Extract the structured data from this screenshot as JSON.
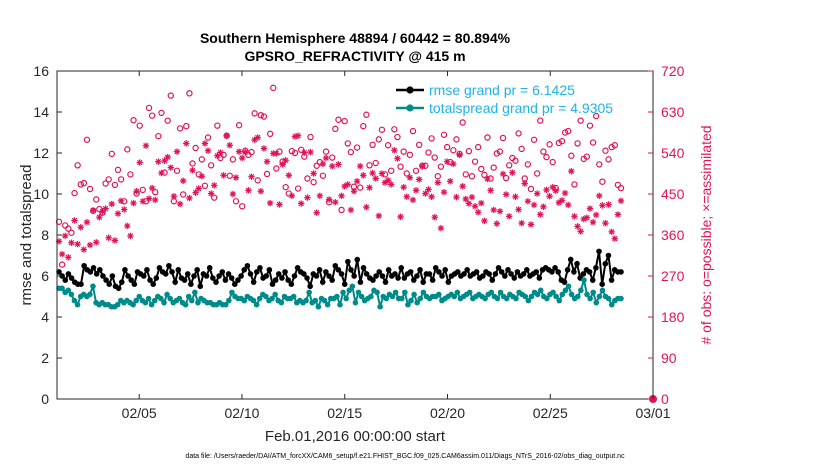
{
  "chart_data": {
    "type": "line",
    "title": "Southern Hemisphere 48894 / 60442 = 80.894%",
    "subtitle": "GPSRO_REFRACTIVITY @ 415 m",
    "xlabel": "Feb.01,2016 00:00:00 start",
    "ylabel": "rmse and totalspread",
    "ylabel_right": "# of obs: o=possible; ×=assimilated",
    "footer": "data file: /Users/raeder/DAI/ATM_forcXX/CAM6_setup/f.e21.FHIST_BGC.f09_025.CAM6assim.011/Diags_NTrS_2016-02/obs_diag_output.nc",
    "xlim": [
      0,
      29
    ],
    "ylim": [
      0,
      16
    ],
    "ylim_right": [
      0,
      720
    ],
    "x_ticks": [
      {
        "value": 4,
        "label": "02/05"
      },
      {
        "value": 9,
        "label": "02/10"
      },
      {
        "value": 14,
        "label": "02/15"
      },
      {
        "value": 19,
        "label": "02/20"
      },
      {
        "value": 24,
        "label": "02/25"
      },
      {
        "value": 29,
        "label": "03/01"
      }
    ],
    "y_ticks": [
      "0",
      "2",
      "4",
      "6",
      "8",
      "10",
      "12",
      "14",
      "16"
    ],
    "y_ticks_right": [
      "0",
      "90",
      "180",
      "270",
      "360",
      "450",
      "540",
      "630",
      "720"
    ],
    "legend_position": "top-right",
    "colors": {
      "rmse": "#000000",
      "spread": "#008b8b",
      "obs": "#e0135a",
      "legend_text": "#1fb3e8"
    },
    "series": [
      {
        "name": "rmse grand pr = 6.1425",
        "values": [
          6.2,
          6.0,
          5.8,
          6.1,
          5.9,
          5.7,
          5.6,
          5.6,
          6.5,
          6.3,
          6.2,
          6.4,
          6.1,
          6.3,
          6.0,
          5.8,
          5.6,
          6.0,
          5.5,
          5.4,
          5.7,
          6.3,
          6.0,
          5.8,
          5.6,
          6.2,
          6.1,
          6.0,
          6.3,
          5.8,
          5.6,
          5.9,
          6.4,
          6.2,
          6.1,
          6.5,
          6.2,
          5.7,
          6.3,
          5.9,
          5.8,
          6.1,
          5.6,
          6.0,
          6.3,
          5.5,
          6.1,
          6.0,
          6.4,
          5.9,
          5.7,
          6.0,
          6.2,
          5.8,
          6.1,
          5.9,
          5.6,
          5.8,
          6.0,
          6.3,
          6.5,
          6.1,
          5.7,
          6.2,
          6.4,
          5.9,
          6.0,
          6.3,
          5.6,
          5.8,
          6.1,
          5.9,
          6.2,
          5.8,
          5.6,
          6.0,
          6.4,
          6.2,
          6.1,
          5.9,
          5.5,
          6.1,
          6.0,
          6.3,
          5.7,
          6.2,
          6.0,
          5.8,
          6.5,
          6.3,
          6.1,
          5.6,
          6.7,
          6.3,
          6.0,
          6.8,
          5.7,
          6.4,
          6.1,
          5.9,
          5.8,
          6.0,
          6.2,
          6.0,
          5.7,
          6.3,
          6.0,
          6.1,
          5.9,
          6.4,
          5.9,
          6.1,
          6.2,
          5.8,
          6.0,
          6.3,
          5.7,
          6.1,
          6.1,
          5.8,
          6.4,
          6.2,
          6.0,
          6.3,
          5.7,
          6.0,
          6.1,
          6.2,
          6.0,
          6.1,
          6.3,
          6.0,
          6.1,
          6.2,
          5.9,
          6.0,
          6.2,
          6.1,
          5.8,
          6.1,
          6.4,
          6.2,
          6.0,
          6.3,
          6.1,
          5.9,
          6.2,
          6.0,
          6.1,
          6.3,
          6.0,
          6.1,
          6.2,
          5.9,
          6.3,
          6.4,
          6.3,
          6.2,
          6.4,
          6.2,
          5.8,
          5.7,
          6.3,
          6.8,
          6.2,
          6.6,
          5.9,
          6.1,
          6.3,
          6.2,
          5.8,
          6.4,
          7.2,
          5.6,
          6.6,
          7.0,
          5.8,
          6.3,
          6.2,
          6.2
        ]
      },
      {
        "name": "totalspread grand pr = 4.9305",
        "values": [
          5.4,
          5.4,
          5.2,
          5.3,
          5.1,
          4.8,
          4.6,
          5.0,
          5.1,
          5.0,
          5.1,
          5.5,
          4.7,
          4.6,
          4.7,
          4.6,
          4.6,
          4.5,
          4.5,
          4.6,
          4.8,
          4.7,
          4.8,
          4.7,
          4.6,
          4.8,
          5.0,
          4.8,
          4.7,
          4.9,
          4.6,
          4.8,
          5.0,
          4.9,
          4.7,
          5.1,
          4.9,
          4.7,
          4.8,
          4.9,
          4.7,
          4.6,
          5.0,
          4.8,
          5.2,
          4.7,
          4.9,
          4.8,
          4.7,
          4.7,
          4.6,
          4.6,
          4.7,
          4.6,
          4.6,
          4.8,
          5.2,
          5.0,
          4.9,
          4.9,
          4.8,
          5.0,
          4.9,
          4.8,
          4.6,
          4.9,
          5.1,
          5.0,
          4.8,
          4.9,
          5.1,
          4.8,
          4.7,
          5.0,
          4.9,
          4.9,
          5.0,
          4.7,
          4.8,
          4.7,
          4.8,
          5.2,
          4.7,
          4.8,
          4.5,
          4.9,
          4.8,
          4.6,
          4.9,
          4.9,
          5.0,
          4.6,
          5.2,
          4.9,
          5.3,
          5.5,
          4.7,
          5.2,
          5.0,
          4.8,
          4.9,
          5.0,
          5.3,
          5.2,
          4.5,
          5.0,
          4.9,
          5.1,
          5.0,
          5.2,
          4.9,
          4.9,
          5.2,
          4.6,
          4.8,
          5.1,
          4.7,
          4.9,
          5.2,
          5.0,
          4.9,
          5.0,
          5.0,
          5.1,
          4.8,
          4.9,
          5.0,
          5.1,
          5.0,
          5.2,
          4.9,
          5.0,
          5.1,
          5.2,
          4.9,
          5.0,
          5.1,
          5.0,
          4.9,
          5.1,
          5.2,
          5.0,
          4.9,
          5.2,
          5.0,
          4.9,
          5.1,
          5.0,
          4.9,
          5.2,
          5.1,
          5.0,
          4.8,
          5.0,
          5.2,
          5.1,
          5.3,
          5.0,
          4.9,
          5.1,
          5.2,
          5.0,
          4.8,
          5.1,
          5.3,
          5.5,
          5.1,
          4.9,
          5.0,
          5.3,
          5.8,
          5.1,
          4.9,
          5.2,
          4.7,
          5.0,
          5.3,
          5.0,
          4.9,
          4.6,
          4.8,
          4.9,
          4.9
        ]
      }
    ],
    "obs_possible": [
      389,
      295,
      381,
      374,
      365,
      452,
      513,
      471,
      474,
      569,
      461,
      413,
      438,
      417,
      409,
      473,
      482,
      538,
      470,
      503,
      482,
      434,
      548,
      493,
      612,
      451,
      600,
      459,
      434,
      639,
      622,
      454,
      577,
      628,
      497,
      611,
      666,
      434,
      501,
      594,
      449,
      599,
      671,
      517,
      551,
      493,
      526,
      468,
      574,
      513,
      442,
      600,
      529,
      536,
      578,
      490,
      526,
      434,
      601,
      423,
      545,
      536,
      542,
      627,
      480,
      623,
      620,
      494,
      582,
      683,
      506,
      543,
      521,
      465,
      451,
      544,
      540,
      462,
      547,
      532,
      484,
      575,
      476,
      512,
      520,
      490,
      543,
      432,
      530,
      593,
      613,
      415,
      610,
      561,
      542,
      466,
      552,
      464,
      599,
      624,
      513,
      558,
      518,
      570,
      591,
      493,
      557,
      501,
      592,
      575,
      510,
      543,
      495,
      536,
      588,
      501,
      558,
      512,
      512,
      541,
      572,
      530,
      489,
      510,
      580,
      553,
      520,
      546,
      570,
      538,
      607,
      493,
      544,
      489,
      521,
      553,
      505,
      492,
      574,
      484,
      508,
      539,
      543,
      573,
      485,
      513,
      529,
      523,
      583,
      549,
      484,
      515,
      461,
      569,
      495,
      611,
      543,
      531,
      559,
      520,
      463,
      562,
      566,
      585,
      588,
      534,
      471,
      561,
      611,
      527,
      532,
      600,
      563,
      621,
      515,
      477,
      545,
      526,
      553,
      557,
      470,
      463
    ],
    "obs_assimilated": [
      346,
      318,
      358,
      311,
      343,
      392,
      340,
      377,
      328,
      388,
      338,
      414,
      344,
      399,
      412,
      418,
      354,
      428,
      348,
      407,
      435,
      416,
      380,
      358,
      430,
      456,
      519,
      434,
      556,
      440,
      463,
      437,
      521,
      496,
      523,
      531,
      508,
      445,
      543,
      428,
      479,
      561,
      441,
      502,
      453,
      462,
      489,
      561,
      545,
      451,
      469,
      534,
      541,
      491,
      578,
      557,
      450,
      486,
      543,
      529,
      542,
      458,
      488,
      569,
      574,
      456,
      550,
      521,
      430,
      539,
      539,
      427,
      515,
      524,
      491,
      446,
      576,
      578,
      429,
      541,
      442,
      542,
      495,
      409,
      446,
      516,
      529,
      438,
      511,
      432,
      515,
      446,
      467,
      471,
      415,
      456,
      478,
      511,
      491,
      421,
      464,
      496,
      484,
      402,
      495,
      475,
      480,
      471,
      546,
      528,
      400,
      465,
      444,
      486,
      437,
      458,
      482,
      511,
      451,
      460,
      444,
      399,
      475,
      375,
      454,
      521,
      478,
      516,
      443,
      536,
      467,
      439,
      429,
      443,
      423,
      410,
      430,
      391,
      483,
      458,
      415,
      385,
      412,
      494,
      449,
      401,
      497,
      444,
      416,
      386,
      473,
      434,
      383,
      426,
      451,
      405,
      422,
      459,
      445,
      465,
      457,
      431,
      436,
      452,
      426,
      500,
      401,
      379,
      368,
      395,
      398,
      418,
      388,
      404,
      446,
      425,
      386,
      427,
      367,
      352,
      405,
      435
    ],
    "marker_zero": 0
  }
}
